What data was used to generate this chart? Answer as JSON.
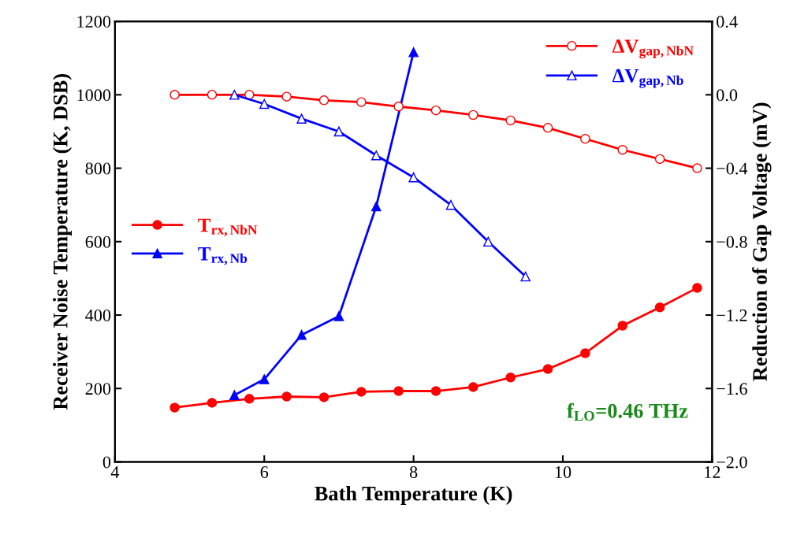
{
  "chart_data": {
    "type": "line",
    "xlabel": "Bath Temperature (K)",
    "ylabel": "Receiver Noise Temperature (K, DSB)",
    "y2label": "Reduction of Gap Voltage (mV)",
    "xlim": [
      4,
      12
    ],
    "xticks": [
      4,
      6,
      8,
      10,
      12
    ],
    "ylim": [
      0,
      1200
    ],
    "yticks": [
      0,
      200,
      400,
      600,
      800,
      1000,
      1200
    ],
    "y2lim": [
      -2.0,
      0.4
    ],
    "y2ticks": [
      {
        "value": -2.0,
        "label": "−2.0"
      },
      {
        "value": -1.6,
        "label": "−1.6"
      },
      {
        "value": -1.2,
        "label": "−1.2"
      },
      {
        "value": -0.8,
        "label": "−0.8"
      },
      {
        "value": -0.4,
        "label": "−0.4"
      },
      {
        "value": 0.0,
        "label": "0.0"
      },
      {
        "value": 0.4,
        "label": "0.4"
      }
    ],
    "grid": false,
    "legend": "top right",
    "line_style": "solid",
    "series": [
      {
        "name": "ΔV$_{gap,NbN}$",
        "color": "#ff0000",
        "axis": "y2",
        "marker": "circle",
        "x": [
          4.8,
          5.3,
          5.8,
          6.3,
          6.8,
          7.3,
          7.8,
          8.3,
          8.8,
          9.3,
          9.8,
          10.3,
          10.8,
          11.3,
          11.8
        ],
        "values": [
          0.0,
          0.0,
          0.0,
          -0.01,
          -0.03,
          -0.04,
          -0.064,
          -0.085,
          -0.11,
          -0.14,
          -0.18,
          -0.24,
          -0.3,
          -0.35,
          -0.4
        ]
      },
      {
        "name": "ΔV$_{gap,Nb}$",
        "color": "#0000ff",
        "axis": "y2",
        "marker": "triangle",
        "x": [
          5.6,
          6,
          6.5,
          7,
          7.5,
          8,
          8.5,
          9,
          9.5
        ],
        "values": [
          0.0,
          -0.05,
          -0.13,
          -0.2,
          -0.33,
          -0.45,
          -0.6,
          -0.8,
          -0.99
        ]
      },
      {
        "name": "T$_{rx,NbN}$",
        "color": "#ff0000",
        "axis": "y",
        "marker": "circle",
        "x": [
          4.8,
          5.3,
          5.8,
          6.3,
          6.8,
          7.3,
          7.8,
          8.3,
          8.8,
          9.3,
          9.8,
          10.3,
          10.8,
          11.3,
          11.8
        ],
        "values": [
          148,
          161,
          172,
          178,
          176,
          191,
          193,
          193,
          204,
          230,
          253,
          296,
          371,
          421,
          474
        ]
      },
      {
        "name": "T$_{rx,Nb}$",
        "color": "#0000ff",
        "axis": "y",
        "marker": "triangle",
        "x": [
          5.6,
          6,
          6.5,
          7,
          7.5,
          8
        ],
        "values": [
          182,
          225,
          346,
          397,
          696,
          1116
        ]
      }
    ],
    "annotations": [
      "f$_{LO}$=0.46 THz"
    ]
  }
}
